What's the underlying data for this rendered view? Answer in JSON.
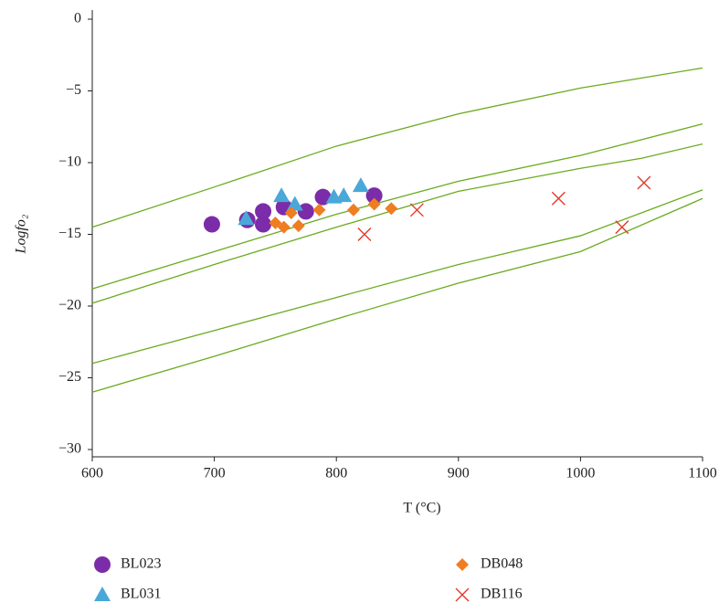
{
  "chart_data": {
    "type": "scatter",
    "xlabel": "T (°C)",
    "ylabel": "Logfo₂",
    "xlim": [
      600,
      1100
    ],
    "xticks": [
      600,
      700,
      800,
      900,
      1000,
      1100
    ],
    "ylim": [
      -30,
      0
    ],
    "yticks": [
      {
        "value": -30,
        "label": "−30"
      },
      {
        "value": -25,
        "label": "−25"
      },
      {
        "value": -20,
        "label": "−20"
      },
      {
        "value": -15,
        "label": "−15"
      },
      {
        "value": -10,
        "label": "−10"
      },
      {
        "value": -5,
        "label": "−5"
      },
      0
    ],
    "curves": [
      {
        "color": "#6aab1f",
        "x": [
          600,
          700,
          800,
          900,
          1000,
          1100
        ],
        "values": [
          -14.5,
          -11.7,
          -8.85,
          -6.6,
          -4.8,
          -3.4
        ]
      },
      {
        "color": "#6aab1f",
        "x": [
          600,
          700,
          800,
          900,
          1000,
          1100
        ],
        "values": [
          -18.8,
          -16.2,
          -13.6,
          -11.3,
          -9.5,
          -7.3
        ]
      },
      {
        "color": "#6aab1f",
        "x": [
          600,
          700,
          800,
          900,
          1000,
          1050,
          1100
        ],
        "values": [
          -19.8,
          -17.1,
          -14.5,
          -12.0,
          -10.4,
          -9.7,
          -8.7
        ]
      },
      {
        "color": "#6aab1f",
        "x": [
          600,
          700,
          800,
          900,
          1000,
          1100
        ],
        "values": [
          -24,
          -21.7,
          -19.4,
          -17.1,
          -15.1,
          -11.9
        ]
      },
      {
        "color": "#6aab1f",
        "x": [
          600,
          700,
          800,
          900,
          1000,
          1100
        ],
        "values": [
          -26,
          -23.5,
          -20.9,
          -18.4,
          -16.2,
          -12.5
        ]
      }
    ],
    "series": [
      {
        "name": "BL023",
        "color": "#7b2ca8",
        "marker": "circle",
        "x": [
          698,
          727,
          740,
          740,
          757,
          775,
          789,
          831
        ],
        "values": [
          -14.3,
          -14.0,
          -14.3,
          -13.4,
          -13.1,
          -13.4,
          -12.4,
          -12.3
        ]
      },
      {
        "name": "BL031",
        "color": "#4aa8d8",
        "marker": "triangle",
        "x": [
          726,
          755,
          766,
          798,
          806,
          820
        ],
        "values": [
          -13.9,
          -12.3,
          -12.9,
          -12.4,
          -12.3,
          -11.6
        ]
      },
      {
        "name": "DB048",
        "color": "#ef7d22",
        "marker": "diamond",
        "x": [
          750,
          757,
          763,
          769,
          786,
          814,
          831,
          845
        ],
        "values": [
          -14.2,
          -14.5,
          -13.5,
          -14.4,
          -13.3,
          -13.3,
          -12.9,
          -13.2
        ]
      },
      {
        "name": "DB116",
        "color": "#e03a2c",
        "marker": "x",
        "x": [
          823,
          866,
          982,
          1034,
          1052
        ],
        "values": [
          -15.0,
          -13.3,
          -12.5,
          -14.5,
          -11.4
        ]
      }
    ]
  }
}
